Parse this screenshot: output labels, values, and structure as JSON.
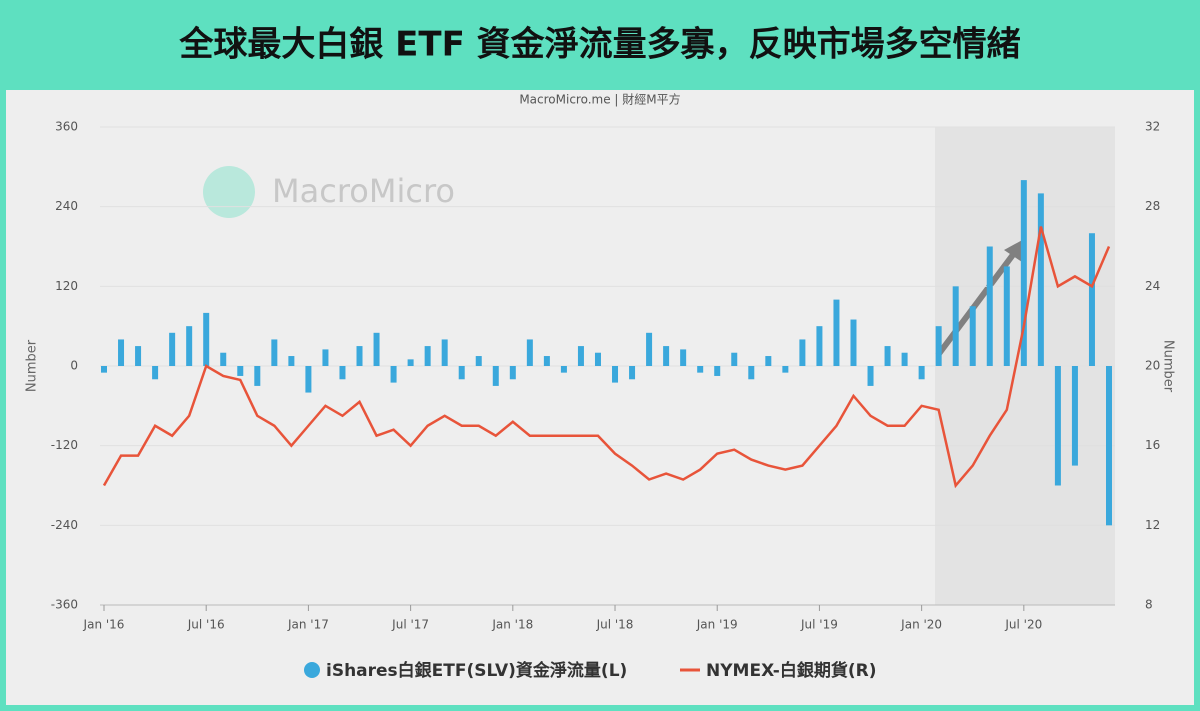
{
  "header": {
    "title": "全球最大白銀 ETF 資金淨流量多寡，反映市場多空情緒"
  },
  "chart_data": {
    "type": "bar-line",
    "subtitle": "MacroMicro.me | 財經M平方",
    "watermark": "MacroMicro",
    "ylabel": "Number",
    "y2label": "Number",
    "x": [
      "2016-01",
      "2016-02",
      "2016-03",
      "2016-04",
      "2016-05",
      "2016-06",
      "2016-07",
      "2016-08",
      "2016-09",
      "2016-10",
      "2016-11",
      "2016-12",
      "2017-01",
      "2017-02",
      "2017-03",
      "2017-04",
      "2017-05",
      "2017-06",
      "2017-07",
      "2017-08",
      "2017-09",
      "2017-10",
      "2017-11",
      "2017-12",
      "2018-01",
      "2018-02",
      "2018-03",
      "2018-04",
      "2018-05",
      "2018-06",
      "2018-07",
      "2018-08",
      "2018-09",
      "2018-10",
      "2018-11",
      "2018-12",
      "2019-01",
      "2019-02",
      "2019-03",
      "2019-04",
      "2019-05",
      "2019-06",
      "2019-07",
      "2019-08",
      "2019-09",
      "2019-10",
      "2019-11",
      "2019-12",
      "2020-01",
      "2020-02",
      "2020-03",
      "2020-04",
      "2020-05",
      "2020-06",
      "2020-07",
      "2020-08",
      "2020-09",
      "2020-10",
      "2020-11",
      "2020-12"
    ],
    "xlim": [
      "2016-01",
      "2020-12"
    ],
    "xticks": [
      {
        "value": "2016-01",
        "label": "Jan '16"
      },
      {
        "value": "2016-07",
        "label": "Jul '16"
      },
      {
        "value": "2017-01",
        "label": "Jan '17"
      },
      {
        "value": "2017-07",
        "label": "Jul '17"
      },
      {
        "value": "2018-01",
        "label": "Jan '18"
      },
      {
        "value": "2018-07",
        "label": "Jul '18"
      },
      {
        "value": "2019-01",
        "label": "Jan '19"
      },
      {
        "value": "2019-07",
        "label": "Jul '19"
      },
      {
        "value": "2020-01",
        "label": "Jan '20"
      },
      {
        "value": "2020-07",
        "label": "Jul '20"
      }
    ],
    "ylim": [
      -360,
      360
    ],
    "yticks": [
      -360,
      -240,
      -120,
      0,
      120,
      240,
      360
    ],
    "y2lim": [
      8,
      32
    ],
    "y2ticks": [
      8,
      12,
      16,
      20,
      24,
      28,
      32
    ],
    "series": [
      {
        "name": "iShares白銀ETF(SLV)資金淨流量(L)",
        "color": "#3aa8dc",
        "axis": "y",
        "values": [
          -10,
          40,
          30,
          -20,
          50,
          60,
          80,
          20,
          -15,
          -30,
          40,
          15,
          -40,
          25,
          -20,
          30,
          50,
          -25,
          10,
          30,
          40,
          -20,
          15,
          -30,
          -20,
          40,
          15,
          -10,
          30,
          20,
          -25,
          -20,
          50,
          30,
          25,
          -10,
          -15,
          20,
          -20,
          15,
          -10,
          40,
          60,
          100,
          70,
          -30,
          30,
          20,
          -20,
          60,
          120,
          90,
          180,
          150,
          280,
          260,
          -180,
          -150,
          200,
          -240
        ]
      },
      {
        "name": "NYMEX-白銀期貨(R)",
        "color": "#e8543a",
        "axis": "y2",
        "values": [
          14,
          15.5,
          15.5,
          17,
          16.5,
          17.5,
          20,
          19.5,
          19.3,
          17.5,
          17,
          16,
          17,
          18,
          17.5,
          18.2,
          16.5,
          16.8,
          16,
          17,
          17.5,
          17,
          17,
          16.5,
          17.2,
          16.5,
          16.5,
          16.5,
          16.5,
          16.5,
          15.6,
          15,
          14.3,
          14.6,
          14.3,
          14.8,
          15.6,
          15.8,
          15.3,
          15,
          14.8,
          15,
          16,
          17,
          18.5,
          17.5,
          17,
          17,
          18,
          17.8,
          14,
          15,
          16.5,
          17.8,
          22,
          27,
          24,
          24.5,
          24,
          26
        ]
      }
    ]
  }
}
